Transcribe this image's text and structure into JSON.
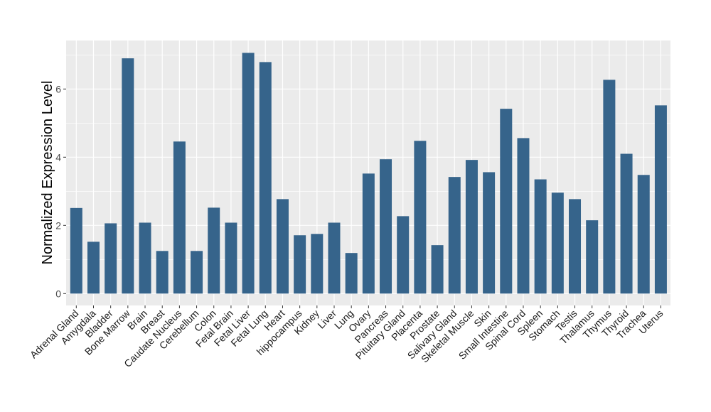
{
  "chart_data": {
    "type": "bar",
    "title": "",
    "xlabel": "",
    "ylabel": "Normalized Expression Level",
    "ylim": [
      -0.35,
      7.4
    ],
    "yticks": [
      0,
      2,
      4,
      6
    ],
    "grid": true,
    "bar_color": "#36648B",
    "panel_color": "#EBEBEB",
    "categories": [
      "Adrenal Gland",
      "Amygdala",
      "Bladder",
      "Bone Marrow",
      "Brain",
      "Breast",
      "Caudate Nucleus",
      "Cerebellum",
      "Colon",
      "Fetal Brain",
      "Fetal Liver",
      "Fetal Lung",
      "Heart",
      "hippocampus",
      "Kidney",
      "Liver",
      "Lung",
      "Ovary",
      "Pancreas",
      "Pituitary Gland",
      "Placenta",
      "Prostate",
      "Salivary Gland",
      "Skeletal Muscle",
      "Skin",
      "Small Intestine",
      "Spinal Cord",
      "Spleen",
      "Stomach",
      "Testis",
      "Thalamus",
      "Thymus",
      "Thyroid",
      "Trachea",
      "Uterus"
    ],
    "values": [
      2.51,
      1.52,
      2.06,
      6.9,
      2.08,
      1.25,
      4.46,
      1.25,
      2.52,
      2.08,
      7.06,
      6.79,
      2.77,
      1.71,
      1.75,
      2.08,
      1.19,
      3.52,
      3.94,
      2.27,
      4.48,
      1.42,
      3.42,
      3.92,
      3.56,
      5.42,
      4.56,
      3.35,
      2.96,
      2.77,
      2.15,
      6.27,
      4.1,
      3.48,
      5.52
    ]
  }
}
